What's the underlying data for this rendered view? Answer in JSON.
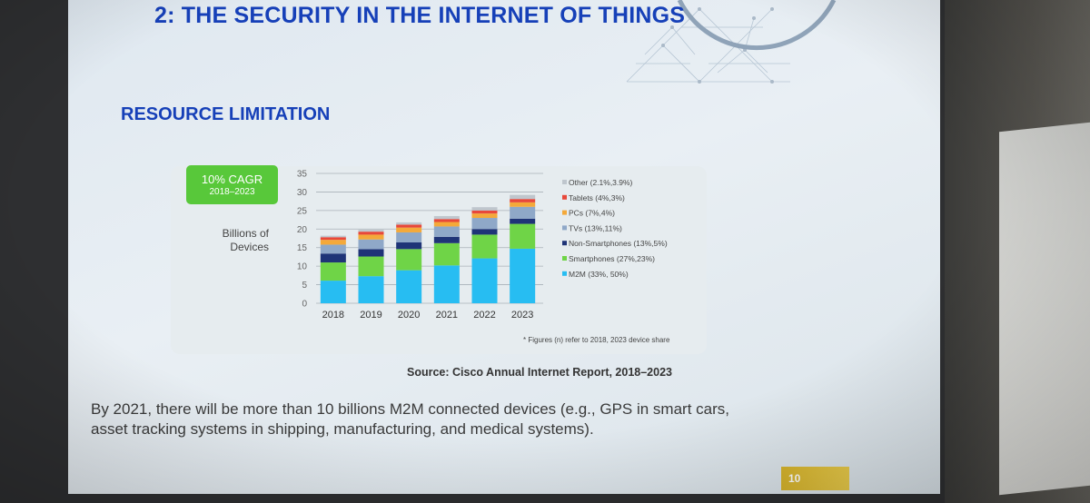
{
  "slide": {
    "title": "2: THE SECURITY IN THE INTERNET OF THINGS",
    "subtitle": "RESOURCE LIMITATION",
    "badge": {
      "line1": "10% CAGR",
      "line2": "2018–2023",
      "color": "#58c83a"
    },
    "ylabel_line1": "Billions of",
    "ylabel_line2": "Devices",
    "footnote": "* Figures (n) refer to 2018, 2023 device share",
    "source": "Source: Cisco Annual Internet Report, 2018–2023",
    "body": "By 2021, there will be more than 10 billions M2M connected devices (e.g., GPS in smart cars, asset tracking systems in shipping, manufacturing, and medical systems).",
    "page_number": "10",
    "accent_color": "#1640b8"
  },
  "chart_data": {
    "type": "bar",
    "stacked": true,
    "categories": [
      "2018",
      "2019",
      "2020",
      "2021",
      "2022",
      "2023"
    ],
    "ylim": [
      0,
      35
    ],
    "yticks": [
      0,
      5,
      10,
      15,
      20,
      25,
      30,
      35
    ],
    "grid": true,
    "legend_position": "right",
    "series": [
      {
        "name": "M2M (33%, 50%)",
        "color": "#27bdf2",
        "values": [
          6.1,
          7.3,
          8.9,
          10.2,
          12.1,
          14.7
        ]
      },
      {
        "name": "Smartphones (27%,23%)",
        "color": "#6fd447",
        "values": [
          4.9,
          5.3,
          5.7,
          6.0,
          6.4,
          6.7
        ]
      },
      {
        "name": "Non-Smartphones (13%,5%)",
        "color": "#1f3477",
        "values": [
          2.4,
          2.0,
          1.8,
          1.7,
          1.5,
          1.4
        ]
      },
      {
        "name": "TVs (13%,11%)",
        "color": "#8fa8c8",
        "values": [
          2.4,
          2.6,
          2.7,
          2.8,
          3.0,
          3.2
        ]
      },
      {
        "name": "PCs (7%,4%)",
        "color": "#f4a93a",
        "values": [
          1.3,
          1.3,
          1.3,
          1.2,
          1.2,
          1.2
        ]
      },
      {
        "name": "Tablets (4%,3%)",
        "color": "#e8483a",
        "values": [
          0.7,
          0.8,
          0.8,
          0.8,
          0.8,
          0.9
        ]
      },
      {
        "name": "Other (2.1%,3.9%)",
        "color": "#bfc6cd",
        "values": [
          0.4,
          0.5,
          0.6,
          0.8,
          0.9,
          1.1
        ]
      }
    ]
  }
}
